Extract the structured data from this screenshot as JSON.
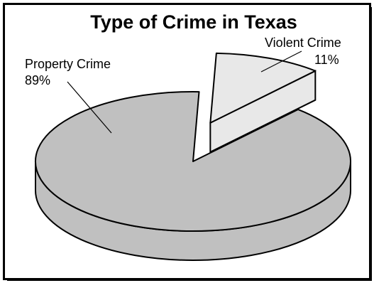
{
  "chart_data": {
    "type": "pie",
    "title": "Type of Crime in Texas",
    "three_d": true,
    "exploded": "Violent Crime",
    "slices": [
      {
        "name": "Violent Crime",
        "value": 11,
        "label": "11%",
        "color": "#e8e8e8"
      },
      {
        "name": "Property Crime",
        "value": 89,
        "label": "89%",
        "color": "#c0c0c0"
      }
    ]
  }
}
